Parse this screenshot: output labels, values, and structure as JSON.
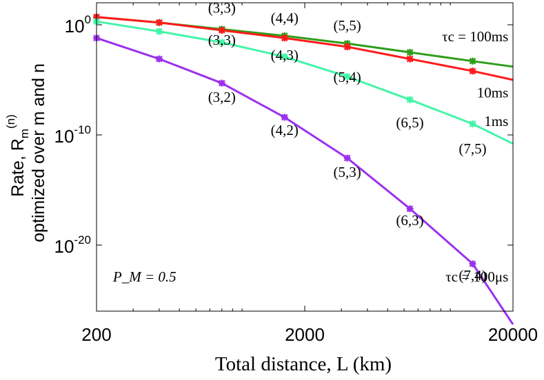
{
  "chart_data": {
    "type": "line",
    "xscale": "log",
    "yscale": "log",
    "xlim": [
      200,
      20000
    ],
    "ylim_exp": [
      -26,
      2
    ],
    "xticks": [
      {
        "value": 200,
        "label": "200"
      },
      {
        "value": 2000,
        "label": "2000"
      },
      {
        "value": 20000,
        "label": "20000"
      }
    ],
    "yticks": [
      {
        "exp": 0,
        "base": "10",
        "sup": "0"
      },
      {
        "exp": -10,
        "base": "10",
        "sup": "-10"
      },
      {
        "exp": -20,
        "base": "10",
        "sup": "-20"
      }
    ],
    "ylabel_line1": "Rate, R",
    "ylabel_sub": "m",
    "ylabel_sup": "(n)",
    "ylabel_line2": "optimized over m and n",
    "xlabel": "Total distance, L (km)",
    "series": [
      {
        "name": "τc = 100ms",
        "color": "#2e9e1a",
        "x": [
          200,
          400,
          800,
          1600,
          3200,
          6400,
          12800,
          20000
        ],
        "logy": [
          0.7,
          0.2,
          -0.4,
          -1.0,
          -1.7,
          -2.5,
          -3.3,
          -3.8
        ]
      },
      {
        "name": "10ms",
        "color": "#ff1a1a",
        "x": [
          200,
          400,
          800,
          1600,
          3200,
          6400,
          12800,
          20000
        ],
        "logy": [
          0.7,
          0.2,
          -0.5,
          -1.2,
          -2.0,
          -3.1,
          -4.2,
          -5.0
        ]
      },
      {
        "name": "1ms",
        "color": "#44f5a8",
        "x": [
          200,
          400,
          800,
          1600,
          3200,
          6400,
          12800,
          20000
        ],
        "logy": [
          0.3,
          -0.6,
          -1.6,
          -2.9,
          -4.7,
          -6.8,
          -9.0,
          -10.8
        ]
      },
      {
        "name": "τc = 100μs",
        "color": "#9b30f0",
        "x": [
          200,
          400,
          800,
          1600,
          3200,
          6400,
          12800,
          20000
        ],
        "logy": [
          -1.2,
          -3.1,
          -5.3,
          -8.4,
          -12.1,
          -16.7,
          -21.7,
          -27.2
        ]
      }
    ],
    "annotations": [
      {
        "text": "(3,3)",
        "x": 800,
        "logy": 1.1
      },
      {
        "text": "(4,4)",
        "x": 1600,
        "logy": 0.2
      },
      {
        "text": "(5,5)",
        "x": 3200,
        "logy": -0.5
      },
      {
        "text": "(3,3)",
        "x": 800,
        "logy": -1.8
      },
      {
        "text": "(4,3)",
        "x": 1600,
        "logy": -3.2
      },
      {
        "text": "(5,4)",
        "x": 3200,
        "logy": -5.2
      },
      {
        "text": "(3,2)",
        "x": 800,
        "logy": -7.0
      },
      {
        "text": "(4,2)",
        "x": 1600,
        "logy": -10.0
      },
      {
        "text": "(6,5)",
        "x": 6400,
        "logy": -9.3
      },
      {
        "text": "(7,5)",
        "x": 12800,
        "logy": -11.7
      },
      {
        "text": "(5,3)",
        "x": 3200,
        "logy": -13.8
      },
      {
        "text": "(6,3)",
        "x": 6400,
        "logy": -18.2
      },
      {
        "text": "(7,4)",
        "x": 12800,
        "logy": -23.2
      }
    ],
    "series_labels": [
      {
        "text": "τc = 100ms",
        "x": 19000,
        "logy": -1.5
      },
      {
        "text": "10ms",
        "x": 19000,
        "logy": -6.6
      },
      {
        "text": "1ms",
        "x": 19000,
        "logy": -9.2
      },
      {
        "text": "τc = 100μs",
        "x": 19000,
        "logy": -23.3
      }
    ],
    "pm_label": "P_M = 0.5",
    "pm_x": 240,
    "pm_logy": -23.3
  }
}
